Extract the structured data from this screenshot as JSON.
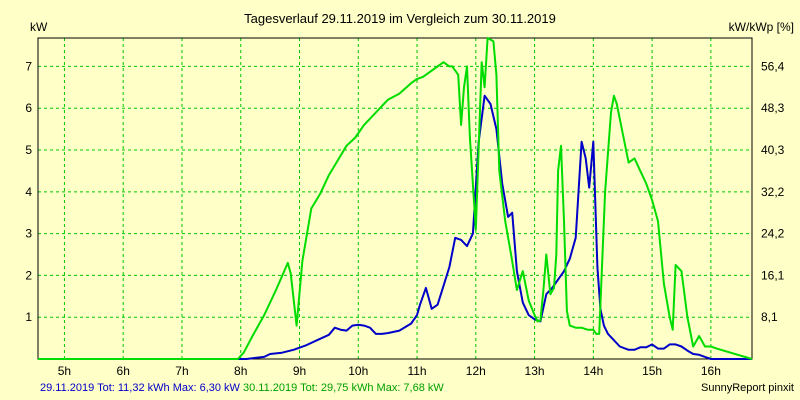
{
  "chart_data": {
    "type": "line",
    "title": "Tagesverlauf 29.11.2019 im Vergleich zum 30.11.2019",
    "ylabel": "kW",
    "y2label": "kW/kWp [%]",
    "xlim": [
      4.55,
      16.7
    ],
    "ylim": [
      0,
      7.68
    ],
    "xticks": [
      5,
      6,
      7,
      8,
      9,
      10,
      11,
      12,
      13,
      14,
      15,
      16
    ],
    "xtick_labels": [
      "5h",
      "6h",
      "7h",
      "8h",
      "9h",
      "10h",
      "11h",
      "12h",
      "13h",
      "14h",
      "15h",
      "16h"
    ],
    "yticks": [
      1,
      2,
      3,
      4,
      5,
      6,
      7
    ],
    "yticks_right": [
      "8,1",
      "16,1",
      "24,2",
      "32,2",
      "40,3",
      "48,3",
      "56,4"
    ],
    "grid": true,
    "colors": {
      "series1": "#0000c8",
      "series2": "#00dc00",
      "grid": "#00c800",
      "background": "#ffffc8"
    },
    "series": [
      {
        "name": "29.11.2019",
        "x": [
          4.55,
          8.1,
          8.2,
          8.4,
          8.5,
          8.7,
          8.9,
          9.1,
          9.3,
          9.5,
          9.6,
          9.7,
          9.8,
          9.9,
          10.0,
          10.1,
          10.2,
          10.3,
          10.4,
          10.5,
          10.7,
          10.9,
          11.0,
          11.05,
          11.15,
          11.25,
          11.35,
          11.45,
          11.55,
          11.65,
          11.75,
          11.85,
          11.95,
          12.05,
          12.15,
          12.25,
          12.35,
          12.45,
          12.55,
          12.62,
          12.7,
          12.8,
          12.9,
          13.0,
          13.1,
          13.2,
          13.3,
          13.4,
          13.5,
          13.6,
          13.7,
          13.8,
          13.87,
          13.93,
          14.0,
          14.07,
          14.12,
          14.18,
          14.25,
          14.35,
          14.45,
          14.6,
          14.7,
          14.8,
          14.9,
          15.0,
          15.1,
          15.2,
          15.3,
          15.4,
          15.5,
          15.6,
          15.7,
          15.8,
          15.9,
          16.0,
          16.7
        ],
        "y": [
          0,
          0,
          0.02,
          0.05,
          0.12,
          0.15,
          0.22,
          0.32,
          0.45,
          0.58,
          0.75,
          0.7,
          0.68,
          0.8,
          0.82,
          0.8,
          0.75,
          0.6,
          0.6,
          0.62,
          0.68,
          0.85,
          1.05,
          1.3,
          1.7,
          1.2,
          1.3,
          1.75,
          2.2,
          2.9,
          2.85,
          2.7,
          3.0,
          5.2,
          6.3,
          6.1,
          5.5,
          4.2,
          3.4,
          3.5,
          2.1,
          1.35,
          1.05,
          0.95,
          0.9,
          1.55,
          1.7,
          1.9,
          2.1,
          2.4,
          2.9,
          5.2,
          4.8,
          4.1,
          5.2,
          2.2,
          1.2,
          0.8,
          0.6,
          0.45,
          0.3,
          0.22,
          0.22,
          0.28,
          0.28,
          0.35,
          0.25,
          0.25,
          0.35,
          0.35,
          0.3,
          0.2,
          0.12,
          0.1,
          0.05,
          0,
          0
        ]
      },
      {
        "name": "30.11.2019",
        "x": [
          4.55,
          7.95,
          8.05,
          8.2,
          8.4,
          8.6,
          8.8,
          8.85,
          8.95,
          9.05,
          9.2,
          9.35,
          9.5,
          9.65,
          9.8,
          9.95,
          10.1,
          10.3,
          10.5,
          10.7,
          10.9,
          11.0,
          11.1,
          11.3,
          11.45,
          11.55,
          11.6,
          11.7,
          11.75,
          11.8,
          11.85,
          11.9,
          12.0,
          12.1,
          12.15,
          12.2,
          12.3,
          12.35,
          12.4,
          12.5,
          12.6,
          12.7,
          12.8,
          12.9,
          13.0,
          13.05,
          13.1,
          13.15,
          13.2,
          13.27,
          13.33,
          13.37,
          13.4,
          13.45,
          13.5,
          13.55,
          13.6,
          13.7,
          13.8,
          13.9,
          14.0,
          14.05,
          14.1,
          14.2,
          14.3,
          14.35,
          14.4,
          14.5,
          14.6,
          14.7,
          14.8,
          14.9,
          15.0,
          15.1,
          15.2,
          15.3,
          15.35,
          15.4,
          15.5,
          15.6,
          15.7,
          15.8,
          15.9,
          16.0,
          16.1,
          16.7
        ],
        "y": [
          0,
          0,
          0.15,
          0.55,
          1.05,
          1.65,
          2.3,
          2.05,
          0.8,
          2.35,
          3.6,
          3.95,
          4.4,
          4.75,
          5.1,
          5.3,
          5.6,
          5.9,
          6.2,
          6.35,
          6.6,
          6.7,
          6.75,
          6.95,
          7.1,
          7.0,
          7.0,
          6.8,
          5.6,
          6.5,
          7.0,
          5.3,
          3.1,
          7.1,
          6.5,
          7.68,
          7.6,
          6.8,
          4.5,
          3.3,
          2.5,
          1.65,
          2.1,
          1.4,
          1.05,
          0.9,
          0.92,
          1.65,
          2.5,
          1.55,
          1.7,
          2.5,
          4.5,
          5.1,
          3.3,
          1.15,
          0.8,
          0.75,
          0.75,
          0.7,
          0.7,
          0.6,
          0.6,
          4.0,
          5.9,
          6.3,
          6.1,
          5.4,
          4.7,
          4.8,
          4.5,
          4.2,
          3.8,
          3.3,
          1.8,
          1.0,
          0.7,
          2.25,
          2.1,
          1.0,
          0.3,
          0.55,
          0.3,
          0.3,
          0.25,
          0
        ]
      }
    ]
  },
  "footer": {
    "series1_text": "29.11.2019 Tot: 11,32 kWh Max: 6,30 kW",
    "series2_text": "30.11.2019 Tot: 29,75 kWh Max: 7,68 kW",
    "credit": "SunnyReport pinxit"
  }
}
